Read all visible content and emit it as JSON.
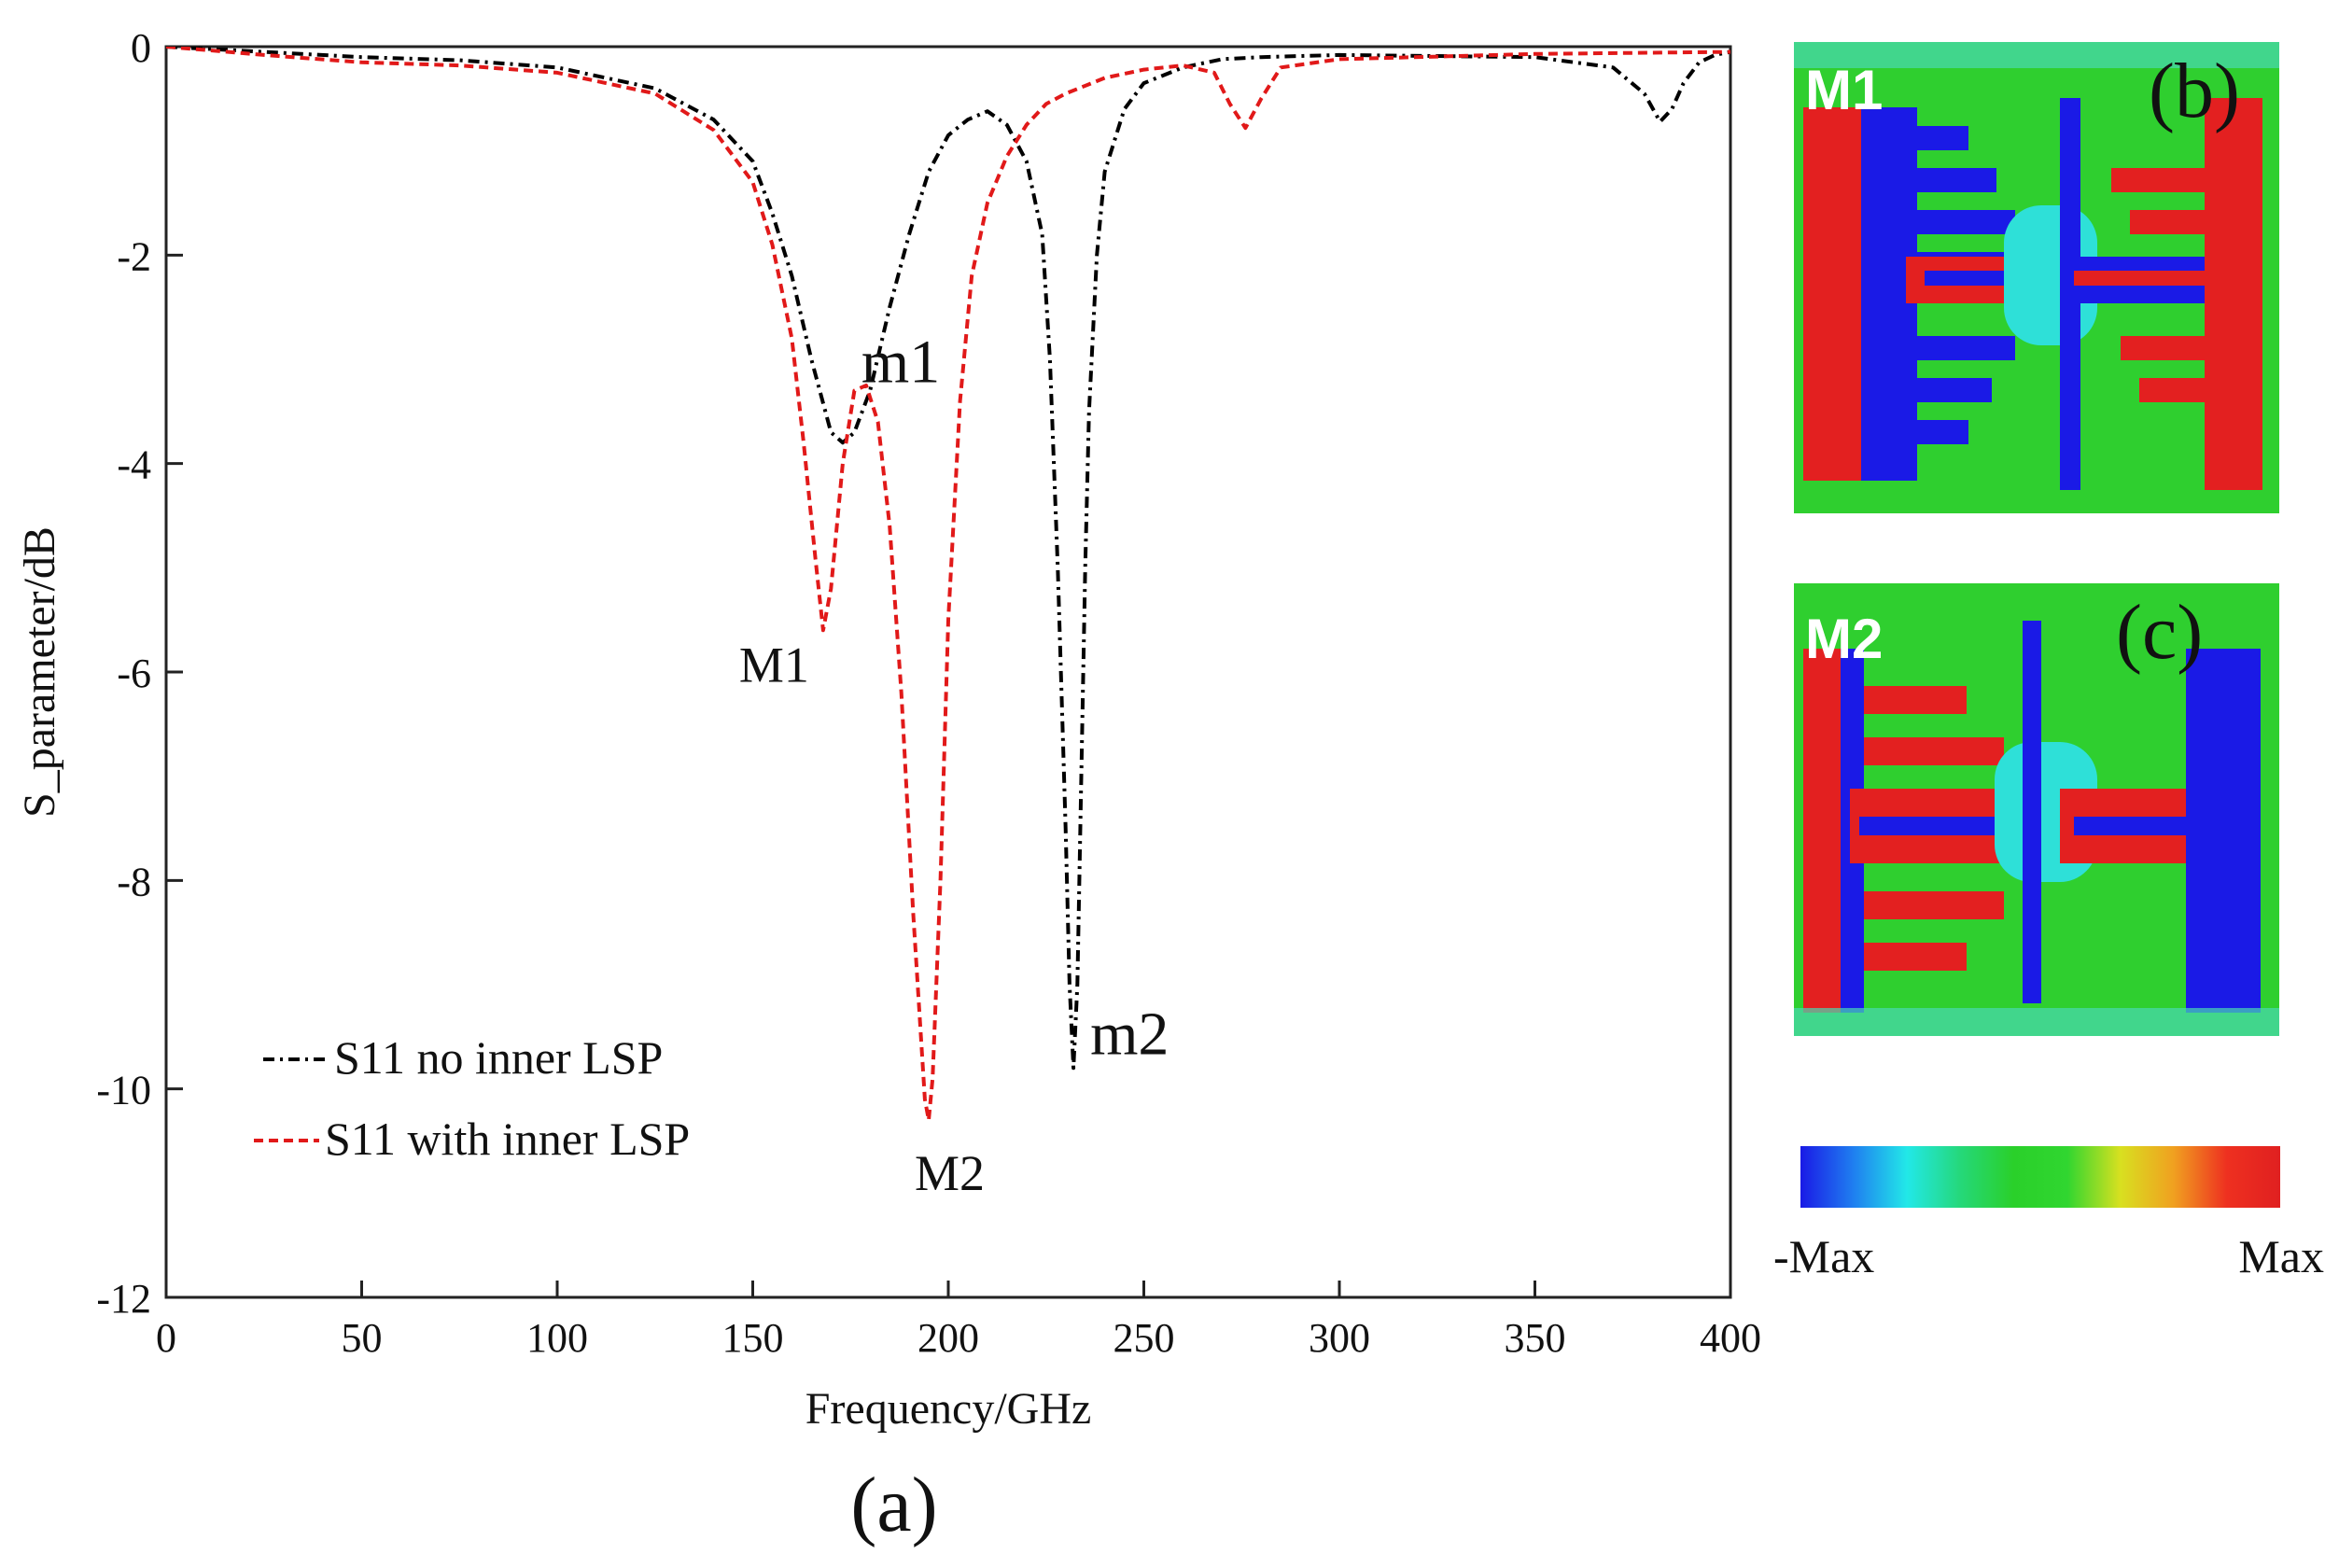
{
  "chart_data": {
    "type": "line",
    "xlabel": "Frequency/GHz",
    "ylabel": "S_parameter/dB",
    "xlim": [
      0,
      400
    ],
    "ylim": [
      -12,
      0
    ],
    "xticks": [
      0,
      50,
      100,
      150,
      200,
      250,
      300,
      350,
      400
    ],
    "yticks": [
      0,
      -2,
      -4,
      -6,
      -8,
      -10,
      -12
    ],
    "grid": false,
    "legend_position": "bottom-left",
    "panel_label": "(a)",
    "series": [
      {
        "name": "S11 no inner LSP",
        "color": "#000000",
        "dash": "dashdot",
        "x": [
          0,
          25,
          50,
          75,
          100,
          125,
          140,
          150,
          155,
          160,
          165,
          170,
          173,
          176,
          180,
          185,
          190,
          195,
          200,
          205,
          210,
          215,
          220,
          224,
          226,
          228,
          230,
          231,
          232,
          233,
          234,
          235,
          236,
          238,
          240,
          245,
          250,
          260,
          270,
          280,
          300,
          350,
          370,
          378,
          382,
          385,
          388,
          392,
          396,
          400
        ],
        "y": [
          0,
          -0.05,
          -0.1,
          -0.13,
          -0.2,
          -0.4,
          -0.7,
          -1.1,
          -1.6,
          -2.2,
          -3.0,
          -3.7,
          -3.8,
          -3.7,
          -3.3,
          -2.5,
          -1.8,
          -1.2,
          -0.85,
          -0.7,
          -0.62,
          -0.75,
          -1.1,
          -1.8,
          -3.0,
          -5.0,
          -7.5,
          -9.0,
          -9.8,
          -9.0,
          -7.0,
          -5.0,
          -3.5,
          -2.0,
          -1.2,
          -0.6,
          -0.35,
          -0.2,
          -0.12,
          -0.1,
          -0.08,
          -0.1,
          -0.2,
          -0.45,
          -0.72,
          -0.6,
          -0.35,
          -0.15,
          -0.08,
          -0.05
        ]
      },
      {
        "name": "S11 with inner LSP",
        "color": "#e11919",
        "dash": "dashed",
        "x": [
          0,
          25,
          50,
          75,
          100,
          125,
          140,
          150,
          155,
          160,
          163,
          166,
          168,
          170,
          173,
          176,
          179,
          182,
          185,
          188,
          191,
          194,
          195,
          196,
          198,
          200,
          203,
          206,
          210,
          215,
          220,
          225,
          230,
          240,
          250,
          260,
          268,
          272,
          276,
          280,
          285,
          300,
          350,
          400
        ],
        "y": [
          0,
          -0.08,
          -0.15,
          -0.18,
          -0.25,
          -0.45,
          -0.8,
          -1.3,
          -1.9,
          -2.8,
          -3.8,
          -4.9,
          -5.6,
          -5.2,
          -4.0,
          -3.3,
          -3.25,
          -3.6,
          -4.6,
          -6.2,
          -8.3,
          -10.1,
          -10.3,
          -9.9,
          -8.0,
          -5.5,
          -3.4,
          -2.2,
          -1.5,
          -1.05,
          -0.75,
          -0.55,
          -0.45,
          -0.3,
          -0.22,
          -0.18,
          -0.25,
          -0.55,
          -0.78,
          -0.5,
          -0.2,
          -0.12,
          -0.07,
          -0.05
        ]
      }
    ],
    "annotations": [
      {
        "text": "m1",
        "x": 173,
        "y": -3.8
      },
      {
        "text": "m2",
        "x": 232,
        "y": -9.8
      },
      {
        "text": "M1",
        "x": 168,
        "y": -5.6
      },
      {
        "text": "M2",
        "x": 195,
        "y": -10.3
      }
    ]
  },
  "field_maps": [
    {
      "mode_label": "M1",
      "panel_label": "(b)"
    },
    {
      "mode_label": "M2",
      "panel_label": "(c)"
    }
  ],
  "colorbar": {
    "min_label": "-Max",
    "max_label": "Max",
    "colors": [
      "#1a1ae6",
      "#1f7ff0",
      "#22e8e8",
      "#25d87a",
      "#2ad02a",
      "#30d630",
      "#d8e020",
      "#f0a020",
      "#ee3020",
      "#e02020"
    ]
  }
}
